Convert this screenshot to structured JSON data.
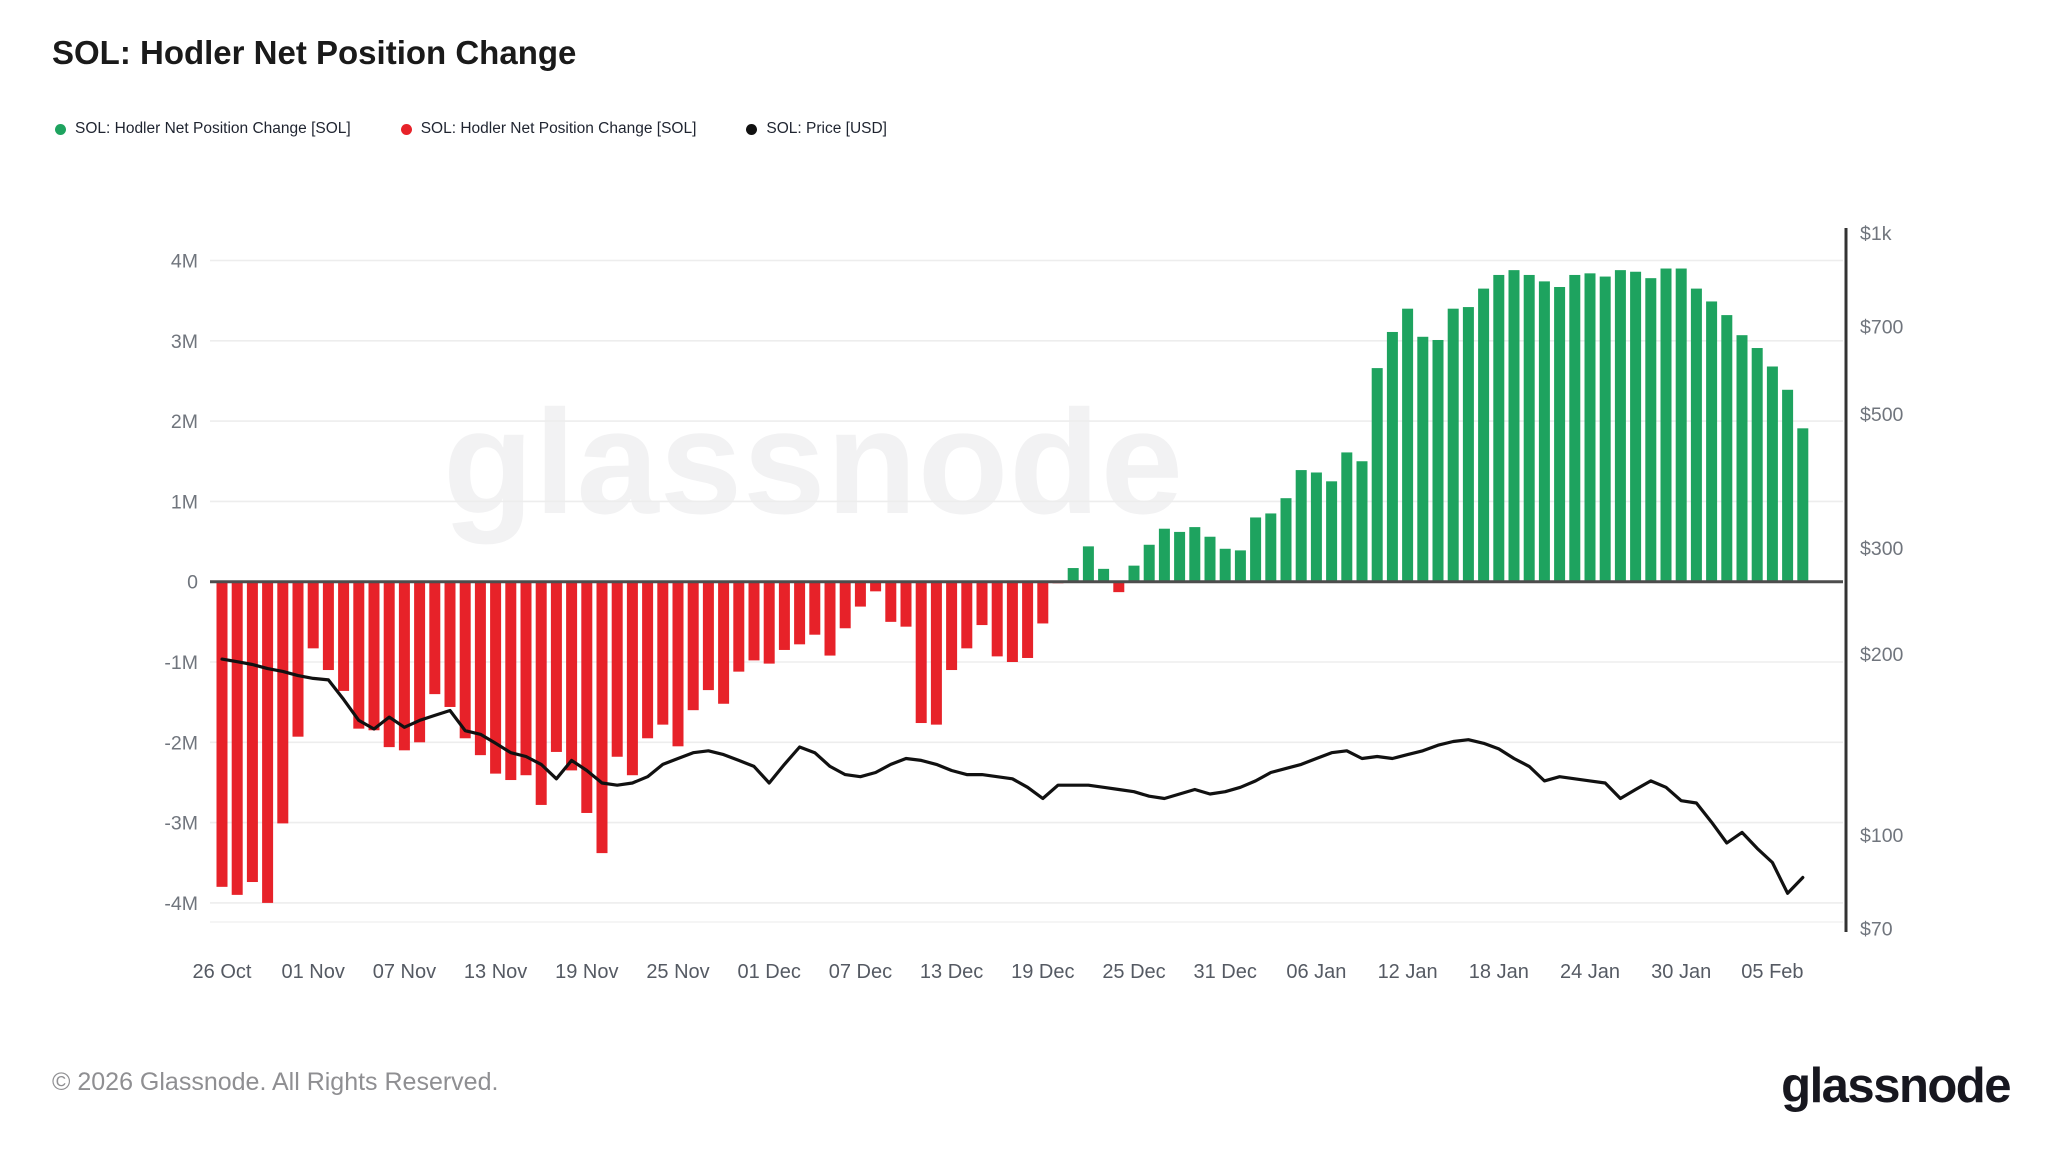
{
  "header": {
    "title": "SOL: Hodler Net Position Change"
  },
  "legend": {
    "items": [
      {
        "label": "SOL: Hodler Net Position Change [SOL]",
        "color": "#1ea35f"
      },
      {
        "label": "SOL: Hodler Net Position Change [SOL]",
        "color": "#e72229"
      },
      {
        "label": "SOL: Price [USD]",
        "color": "#111111"
      }
    ]
  },
  "watermark": "glassnode",
  "footer": {
    "copyright": "© 2026 Glassnode. All Rights Reserved.",
    "brand": "glassnode"
  },
  "chart_data": {
    "type": "combo",
    "title": "SOL: Hodler Net Position Change",
    "grid": true,
    "legend_position": "top-left",
    "x_tick_labels": [
      "26 Oct",
      "01 Nov",
      "07 Nov",
      "13 Nov",
      "19 Nov",
      "25 Nov",
      "01 Dec",
      "07 Dec",
      "13 Dec",
      "19 Dec",
      "25 Dec",
      "31 Dec",
      "06 Jan",
      "12 Jan",
      "18 Jan",
      "24 Jan",
      "30 Jan",
      "05 Feb"
    ],
    "x_tick_every": 6,
    "left_axis": {
      "unit": "millions of SOL",
      "range": [
        -4.3,
        4.3
      ],
      "ticks": [
        {
          "label": "4M",
          "value": 4
        },
        {
          "label": "3M",
          "value": 3
        },
        {
          "label": "2M",
          "value": 2
        },
        {
          "label": "1M",
          "value": 1
        },
        {
          "label": "0",
          "value": 0
        },
        {
          "label": "-1M",
          "value": -1
        },
        {
          "label": "-2M",
          "value": -2
        },
        {
          "label": "-3M",
          "value": -3
        },
        {
          "label": "-4M",
          "value": -4
        }
      ]
    },
    "right_axis": {
      "unit": "USD",
      "scale": "log",
      "range": [
        70,
        1000
      ],
      "ticks": [
        {
          "label": "$1k",
          "value": 1000
        },
        {
          "label": "$700",
          "value": 700
        },
        {
          "label": "$500",
          "value": 500
        },
        {
          "label": "$300",
          "value": 300
        },
        {
          "label": "$200",
          "value": 200
        },
        {
          "label": "$100",
          "value": 100
        },
        {
          "label": "$70",
          "value": 70
        }
      ]
    },
    "bar_series": {
      "name": "SOL: Hodler Net Position Change [SOL]",
      "positive_color": "#1ea35f",
      "negative_color": "#e72229",
      "values": [
        -3.8,
        -3.9,
        -3.74,
        -4.0,
        -3.01,
        -1.93,
        -0.83,
        -1.1,
        -1.36,
        -1.83,
        -1.85,
        -2.06,
        -2.1,
        -2.0,
        -1.4,
        -1.56,
        -1.95,
        -2.16,
        -2.39,
        -2.47,
        -2.41,
        -2.78,
        -2.12,
        -2.35,
        -2.88,
        -3.38,
        -2.18,
        -2.41,
        -1.95,
        -1.78,
        -2.05,
        -1.6,
        -1.35,
        -1.52,
        -1.12,
        -0.98,
        -1.02,
        -0.85,
        -0.78,
        -0.66,
        -0.92,
        -0.58,
        -0.31,
        -0.12,
        -0.5,
        -0.56,
        -1.76,
        -1.78,
        -1.1,
        -0.83,
        -0.54,
        -0.93,
        -1.0,
        -0.95,
        -0.52,
        -0.02,
        0.17,
        0.44,
        0.16,
        -0.13,
        0.2,
        0.46,
        0.66,
        0.62,
        0.68,
        0.56,
        0.41,
        0.39,
        0.8,
        0.85,
        1.04,
        1.39,
        1.36,
        1.25,
        1.61,
        1.5,
        2.66,
        3.11,
        3.4,
        3.05,
        3.01,
        3.4,
        3.42,
        3.65,
        3.82,
        3.88,
        3.82,
        3.74,
        3.67,
        3.82,
        3.84,
        3.8,
        3.88,
        3.86,
        3.78,
        3.9,
        3.9,
        3.65,
        3.49,
        3.32,
        3.07,
        2.91,
        2.68,
        2.39,
        1.91
      ]
    },
    "line_series": {
      "name": "SOL: Price [USD]",
      "color": "#111111",
      "values": [
        196,
        194,
        192,
        189,
        187,
        184,
        182,
        181,
        168,
        155,
        150,
        157,
        151,
        155,
        158,
        161,
        149,
        147,
        142,
        137,
        135,
        131,
        124,
        133,
        128,
        122,
        121,
        122,
        125,
        131,
        134,
        137,
        138,
        136,
        133,
        130,
        122,
        131,
        140,
        137,
        130,
        126,
        125,
        127,
        131,
        134,
        133,
        131,
        128,
        126,
        126,
        125,
        124,
        120,
        115,
        121,
        121,
        121,
        120,
        119,
        118,
        116,
        115,
        117,
        119,
        117,
        118,
        120,
        123,
        127,
        129,
        131,
        134,
        137,
        138,
        134,
        135,
        134,
        136,
        138,
        141,
        143,
        144,
        142,
        139,
        134,
        130,
        123,
        125,
        124,
        123,
        122,
        115,
        119,
        123,
        120,
        114,
        113,
        105,
        97,
        101,
        95,
        90,
        80,
        85
      ]
    }
  }
}
